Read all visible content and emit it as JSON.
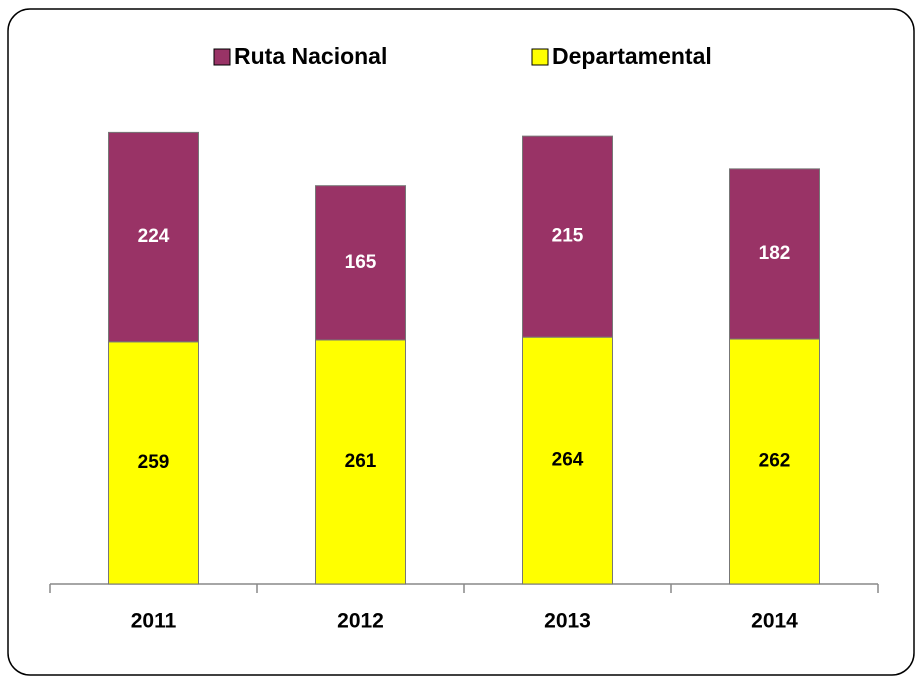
{
  "chart_data": {
    "type": "bar",
    "stacked": true,
    "categories": [
      "2011",
      "2012",
      "2013",
      "2014"
    ],
    "series": [
      {
        "name": "Ruta Nacional",
        "color": "#993366",
        "values": [
          224,
          165,
          215,
          182
        ]
      },
      {
        "name": "Departamental",
        "color": "#ffff00",
        "values": [
          259,
          261,
          264,
          262
        ]
      }
    ]
  }
}
